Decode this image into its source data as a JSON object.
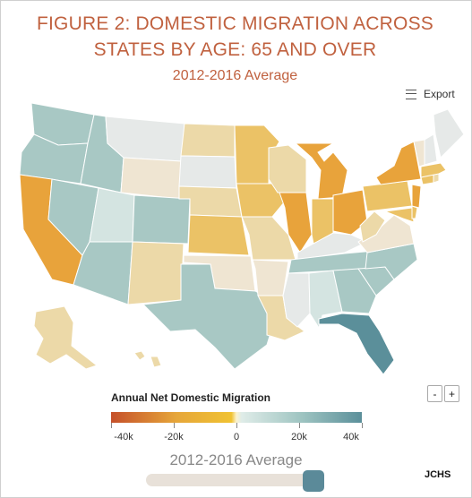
{
  "header": {
    "title": "FIGURE 2: DOMESTIC MIGRATION ACROSS STATES BY AGE: 65 AND OVER",
    "subtitle": "2012-2016 Average",
    "export_label": "Export"
  },
  "legend": {
    "title": "Annual Net Domestic Migration",
    "ticks": [
      "-40k",
      "-20k",
      "0",
      "20k",
      "40k"
    ],
    "colors": [
      "#c5502a",
      "#e6a63a",
      "#f0c232",
      "#fbf3cf",
      "#9ec4c1",
      "#5b8f9a"
    ]
  },
  "zoom": {
    "minus": "-",
    "plus": "+"
  },
  "slider": {
    "label": "2012-2016 Average",
    "position": 1.0
  },
  "credit": "JCHS",
  "map_colors": {
    "teal_mid": "#a8c8c4",
    "teal_light": "#d4e4e1",
    "teal_dark": "#5b8f9a",
    "gray": "#e6e9e8",
    "beige": "#efe5d2",
    "tan": "#ecd9a8",
    "gold": "#ebc266",
    "orange": "#e8a33b"
  },
  "icons": {
    "export": "menu-icon"
  }
}
